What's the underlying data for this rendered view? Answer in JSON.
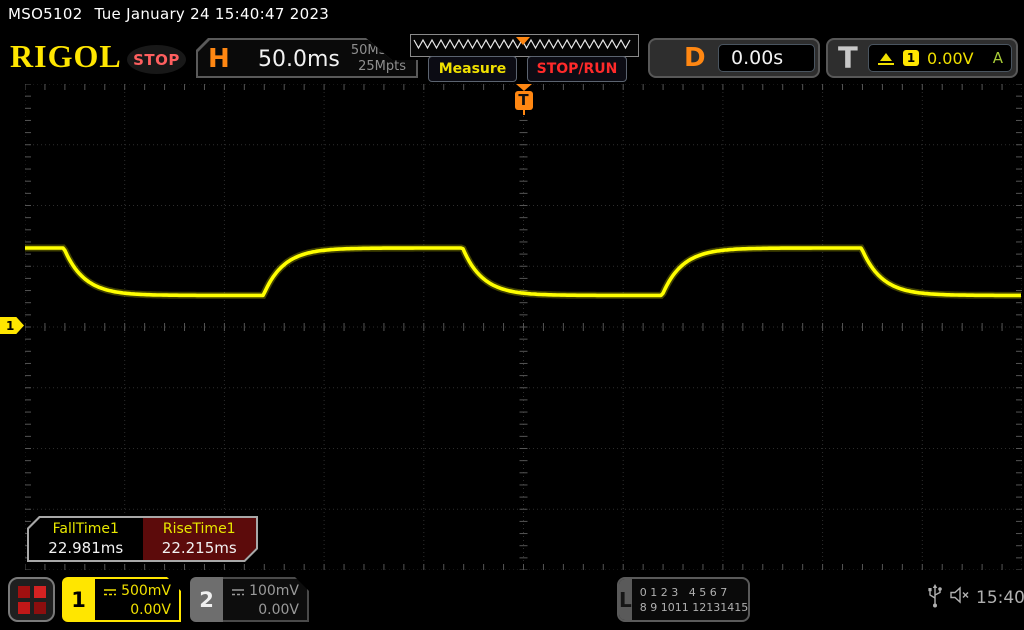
{
  "title_bar": {
    "model": "MSO5102",
    "datetime": "Tue January 24 15:40:47 2023"
  },
  "header": {
    "logo": "RIGOL",
    "stop_badge": "STOP",
    "horizontal": {
      "label": "H",
      "timebase": "50.0ms",
      "sample_rate": "50MSa/s",
      "memory_depth": "25Mpts"
    },
    "buttons": {
      "measure": "Measure",
      "run_stop": "STOP/RUN"
    },
    "delay": {
      "label": "D",
      "value": "0.00s"
    },
    "trigger": {
      "label": "T",
      "source_badge": "1",
      "level": "0.00V",
      "mode": "A"
    }
  },
  "graticule": {
    "h_divisions": 10,
    "v_divisions": 8,
    "trigger_marker_label": "T",
    "channel_marker_label": "1"
  },
  "measurements": {
    "items": [
      {
        "name": "FallTime1",
        "value": "22.981ms",
        "selected": false
      },
      {
        "name": "RiseTime1",
        "value": "22.215ms",
        "selected": true
      }
    ]
  },
  "bottom_bar": {
    "channels": [
      {
        "id": "1",
        "scale": "500mV",
        "offset": "0.00V",
        "color": "#ffe600",
        "active": true
      },
      {
        "id": "2",
        "scale": "100mV",
        "offset": "0.00V",
        "color": "#9a9a9a",
        "active": false
      }
    ],
    "logic": {
      "label": "L",
      "row1": "0 1 2 3   4 5 6 7",
      "row2": "8 9 1011 12131415"
    },
    "clock": "15:40"
  },
  "waveform": {
    "type": "line",
    "channel": 1,
    "color": "#ffff00",
    "time_per_div_ms": 50,
    "volts_per_div": 0.5,
    "period_ms": 200,
    "duty_cycle": 0.5,
    "tau_ms": 10,
    "high_v": 0.65,
    "low_v": 0.26,
    "first_fall_offset_ms": -230.5,
    "fall_time": "22.981ms",
    "rise_time": "22.215ms"
  },
  "colors": {
    "accent_yellow": "#ffe600",
    "trace_yellow": "#ffff00",
    "orange": "#ff8712",
    "red": "#ff2a2a",
    "stop_pink": "#ff5f5f",
    "green": "#a6c937",
    "gray_text": "#9a9a9a",
    "grid_line": "#2d2d2d",
    "grid_tick": "#555555",
    "measure_selected_bg": "#5c0b0b"
  }
}
